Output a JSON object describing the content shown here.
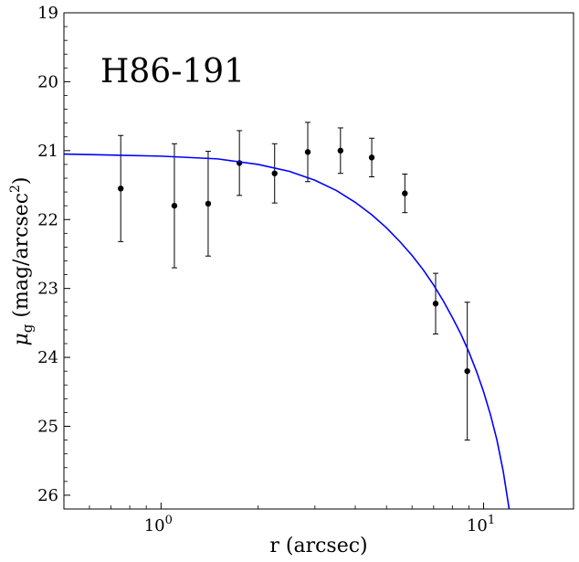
{
  "chart_data": {
    "type": "scatter",
    "annotation": "H86-191",
    "xlabel": "r (arcsec)",
    "ylabel_base": "μ",
    "ylabel_sub": "g",
    "ylabel_rest": " (mag/arcsec",
    "ylabel_sup": "2",
    "ylabel_close": ")",
    "x_scale": "log",
    "xlim": [
      0.5,
      19
    ],
    "ylim": [
      26.2,
      19
    ],
    "y_inverted": true,
    "x_ticks": [
      {
        "value": 1,
        "base": "10",
        "exp": "0"
      },
      {
        "value": 10,
        "base": "10",
        "exp": "1"
      }
    ],
    "y_ticks": [
      19,
      20,
      21,
      22,
      23,
      24,
      25,
      26
    ],
    "grid": false,
    "points": [
      {
        "x": 0.75,
        "y": 21.55,
        "yerr": 0.77
      },
      {
        "x": 1.1,
        "y": 21.8,
        "yerr": 0.9
      },
      {
        "x": 1.4,
        "y": 21.77,
        "yerr": 0.76
      },
      {
        "x": 1.75,
        "y": 21.18,
        "yerr": 0.47
      },
      {
        "x": 2.25,
        "y": 21.33,
        "yerr": 0.43
      },
      {
        "x": 2.85,
        "y": 21.02,
        "yerr": 0.43
      },
      {
        "x": 3.6,
        "y": 21.0,
        "yerr": 0.33
      },
      {
        "x": 4.5,
        "y": 21.1,
        "yerr": 0.28
      },
      {
        "x": 5.7,
        "y": 21.62,
        "yerr": 0.28
      },
      {
        "x": 7.1,
        "y": 23.22,
        "yerr": 0.44
      },
      {
        "x": 8.9,
        "y": 24.2,
        "yerr": 1.0
      }
    ],
    "fit_curve": {
      "color": "#0000ff",
      "points": [
        [
          0.5,
          21.05
        ],
        [
          1.0,
          21.08
        ],
        [
          1.5,
          21.12
        ],
        [
          2.0,
          21.2
        ],
        [
          2.5,
          21.3
        ],
        [
          3.0,
          21.43
        ],
        [
          3.5,
          21.58
        ],
        [
          4.0,
          21.75
        ],
        [
          4.5,
          21.93
        ],
        [
          5.0,
          22.12
        ],
        [
          5.5,
          22.32
        ],
        [
          6.0,
          22.52
        ],
        [
          6.5,
          22.73
        ],
        [
          7.0,
          22.95
        ],
        [
          7.5,
          23.18
        ],
        [
          8.0,
          23.42
        ],
        [
          8.5,
          23.66
        ],
        [
          9.0,
          23.92
        ],
        [
          9.5,
          24.2
        ],
        [
          10.0,
          24.5
        ],
        [
          10.5,
          24.83
        ],
        [
          11.0,
          25.2
        ],
        [
          11.5,
          25.65
        ],
        [
          12.0,
          26.2
        ]
      ]
    },
    "marker_color": "#000000"
  }
}
